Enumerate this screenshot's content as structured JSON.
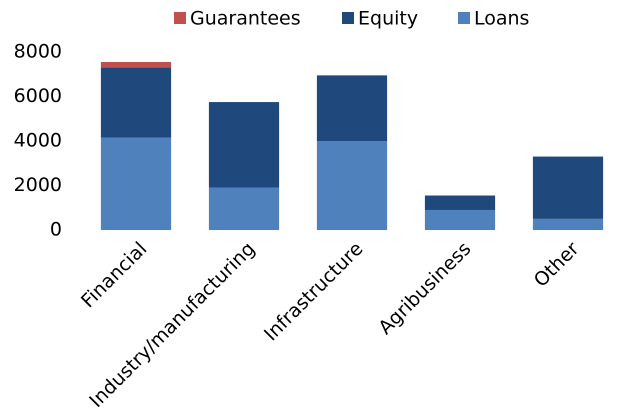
{
  "chart_data": {
    "type": "stacked_bar",
    "categories": [
      "Financial",
      "Industry/manufacturing",
      "Infrastructure",
      "Agribusiness",
      "Other"
    ],
    "series": [
      {
        "name": "Loans",
        "color": "#4f81bd",
        "values": [
          4150,
          1900,
          4000,
          900,
          500
        ]
      },
      {
        "name": "Equity",
        "color": "#1f497d",
        "values": [
          3150,
          3850,
          2950,
          650,
          2800
        ]
      },
      {
        "name": "Guarantees",
        "color": "#c0504d",
        "values": [
          250,
          0,
          0,
          0,
          0
        ]
      }
    ],
    "ylim": [
      0,
      8000
    ],
    "yticks": [
      0,
      2000,
      4000,
      6000,
      8000
    ],
    "grid": false,
    "legend": "top"
  }
}
